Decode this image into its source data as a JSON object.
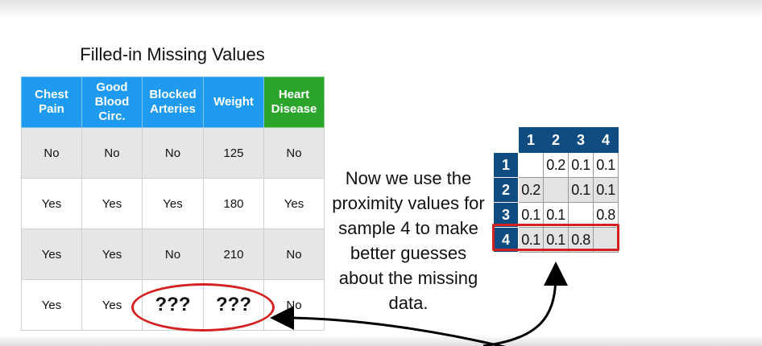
{
  "title": "Filled-in Missing Values",
  "table": {
    "headers": [
      {
        "label": "Chest\nPain"
      },
      {
        "label": "Good\nBlood\nCirc."
      },
      {
        "label": "Blocked\nArteries"
      },
      {
        "label": "Weight"
      },
      {
        "label": "Heart\nDisease"
      }
    ],
    "rows": [
      [
        "No",
        "No",
        "No",
        "125",
        "No"
      ],
      [
        "Yes",
        "Yes",
        "Yes",
        "180",
        "Yes"
      ],
      [
        "Yes",
        "Yes",
        "No",
        "210",
        "No"
      ],
      [
        "Yes",
        "Yes",
        "???",
        "???",
        "No"
      ]
    ]
  },
  "explanation": "Now we use the proximity values for sample 4 to make better guesses about the missing data.",
  "proximity": {
    "col_headers": [
      "1",
      "2",
      "3",
      "4"
    ],
    "rows": [
      {
        "label": "1",
        "cells": [
          "",
          "0.2",
          "0.1",
          "0.1"
        ]
      },
      {
        "label": "2",
        "cells": [
          "0.2",
          "",
          "0.1",
          "0.1"
        ]
      },
      {
        "label": "3",
        "cells": [
          "0.1",
          "0.1",
          "",
          "0.8"
        ]
      },
      {
        "label": "4",
        "cells": [
          "0.1",
          "0.1",
          "0.8",
          ""
        ]
      }
    ],
    "highlighted_row": "4"
  },
  "colors": {
    "header_blue": "#1e9bf0",
    "header_green": "#2aa42a",
    "matrix_header": "#0f4c81",
    "highlight_red": "#d32020"
  }
}
